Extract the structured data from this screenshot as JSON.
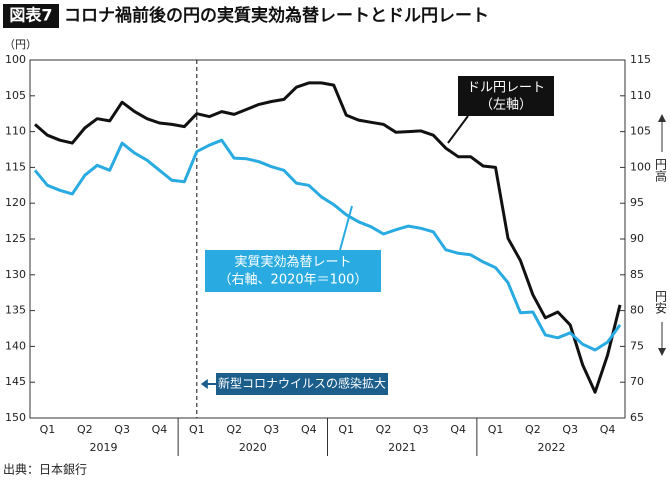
{
  "chart_data": {
    "type": "line",
    "title_badge": "図表7",
    "title": "コロナ禍前後の円の実質実効為替レートとドル円レート",
    "y_unit": "（円）",
    "categories": [
      null,
      "Q1",
      null,
      null,
      "Q2",
      null,
      null,
      "Q3",
      null,
      null,
      "Q4",
      null,
      null,
      "Q1",
      null,
      null,
      "Q2",
      null,
      null,
      "Q3",
      null,
      null,
      "Q4",
      null,
      null,
      "Q1",
      null,
      null,
      "Q2",
      null,
      null,
      "Q3",
      null,
      null,
      "Q4",
      null,
      null,
      "Q1",
      null,
      null,
      "Q2",
      null,
      null,
      "Q3",
      null,
      null,
      "Q4",
      null
    ],
    "years": [
      "2019",
      "2020",
      "2021",
      "2022"
    ],
    "ylim": [
      150,
      100
    ],
    "yticks": [
      100,
      105,
      110,
      115,
      120,
      125,
      130,
      135,
      140,
      145,
      150
    ],
    "y2lim": [
      65,
      115
    ],
    "y2ticks": [
      115,
      110,
      105,
      100,
      95,
      90,
      85,
      80,
      75,
      70,
      65
    ],
    "series": [
      {
        "name": "ドル円レート",
        "name_note": "（左軸）",
        "color": "#111111",
        "values": [
          109.0,
          110.5,
          111.2,
          111.6,
          109.5,
          108.2,
          108.5,
          105.9,
          107.2,
          108.2,
          108.8,
          109.0,
          109.3,
          107.5,
          107.9,
          107.2,
          107.6,
          106.9,
          106.2,
          105.8,
          105.5,
          103.8,
          103.2,
          103.2,
          103.5,
          107.7,
          108.4,
          108.7,
          109.0,
          110.1,
          110.0,
          109.9,
          110.5,
          112.3,
          113.5,
          113.5,
          114.8,
          115.0,
          124.9,
          128.0,
          132.8,
          136.0,
          135.2,
          137.0,
          142.6,
          146.4,
          141.2,
          134.2
        ]
      },
      {
        "name": "実質実効為替レート",
        "name_note": "（右軸、2020年＝100）",
        "color": "#29abe2",
        "axis": "y2",
        "values": [
          99.6,
          97.5,
          96.8,
          96.3,
          98.9,
          100.3,
          99.6,
          103.4,
          102.0,
          101.0,
          99.6,
          98.2,
          98.0,
          102.2,
          103.1,
          103.8,
          101.3,
          101.2,
          100.8,
          100.1,
          99.6,
          97.8,
          97.5,
          95.9,
          94.8,
          93.4,
          92.4,
          91.7,
          90.7,
          91.3,
          91.8,
          91.5,
          91.0,
          88.5,
          88.0,
          87.8,
          86.8,
          86.0,
          83.9,
          79.7,
          79.8,
          76.6,
          76.2,
          76.9,
          75.3,
          74.5,
          75.6,
          78.0
        ]
      }
    ],
    "event_label": "新型コロナウイルスの感染拡大",
    "strong_yen": "円高",
    "weak_yen": "円安",
    "source": "出典：日本銀行"
  }
}
